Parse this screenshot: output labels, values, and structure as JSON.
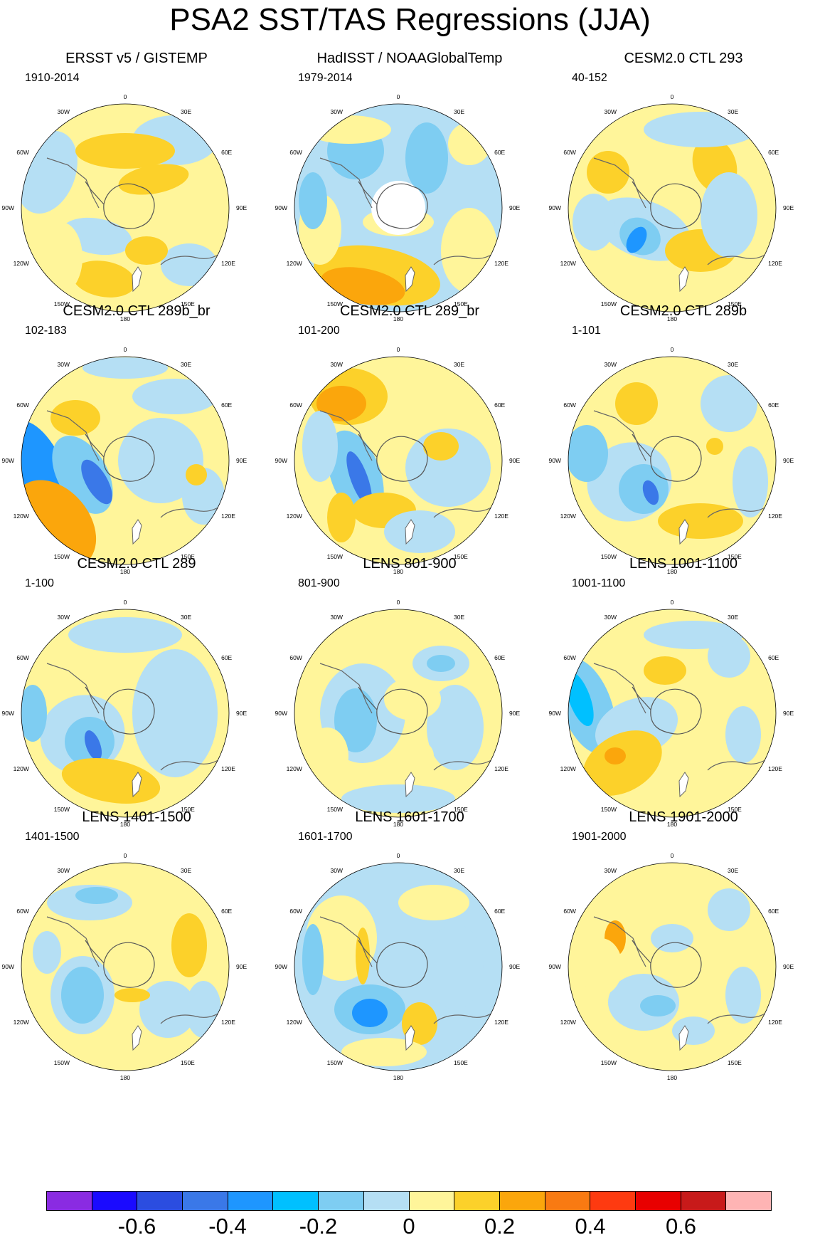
{
  "title": "PSA2 SST/TAS Regressions (JJA)",
  "panels": [
    {
      "title": "ERSST v5 / GISTEMP",
      "period": "1910-2014",
      "style": "obs1"
    },
    {
      "title": "HadISST / NOAAGlobalTemp",
      "period": "1979-2014",
      "style": "obs2"
    },
    {
      "title": "CESM2.0 CTL 293",
      "period": "40-152",
      "style": "m1"
    },
    {
      "title": "CESM2.0 CTL 289b_br",
      "period": "102-183",
      "style": "m2"
    },
    {
      "title": "CESM2.0 CTL 289_br",
      "period": "101-200",
      "style": "m3"
    },
    {
      "title": "CESM2.0 CTL 289b",
      "period": "1-101",
      "style": "m4"
    },
    {
      "title": "CESM2.0 CTL 289",
      "period": "1-100",
      "style": "m5"
    },
    {
      "title": "LENS 801-900",
      "period": "801-900",
      "style": "m6"
    },
    {
      "title": "LENS 1001-1100",
      "period": "1001-1100",
      "style": "m7"
    },
    {
      "title": "LENS 1401-1500",
      "period": "1401-1500",
      "style": "m8"
    },
    {
      "title": "LENS 1601-1700",
      "period": "1601-1700",
      "style": "m9"
    },
    {
      "title": "LENS 1901-2000",
      "period": "1901-2000",
      "style": "m10"
    }
  ],
  "longitude_labels": [
    "0",
    "30E",
    "60E",
    "90E",
    "120E",
    "150E",
    "180",
    "150W",
    "120W",
    "90W",
    "60W",
    "30W"
  ],
  "colorbar": {
    "colors": [
      "#8a2be2",
      "#1a0aff",
      "#2b4de0",
      "#3a78e8",
      "#1e96ff",
      "#00c0ff",
      "#7ecdf2",
      "#b5dff4",
      "#fff59a",
      "#fcd12a",
      "#fba60c",
      "#f97a12",
      "#fe3a10",
      "#e80000",
      "#c81a1a",
      "#feb4b4"
    ],
    "tick_labels": [
      "-0.6",
      "-0.4",
      "-0.2",
      "0",
      "0.2",
      "0.4",
      "0.6"
    ],
    "tick_values": [
      -0.6,
      -0.4,
      -0.2,
      0,
      0.2,
      0.4,
      0.6
    ],
    "min": -0.8,
    "max": 0.8
  }
}
